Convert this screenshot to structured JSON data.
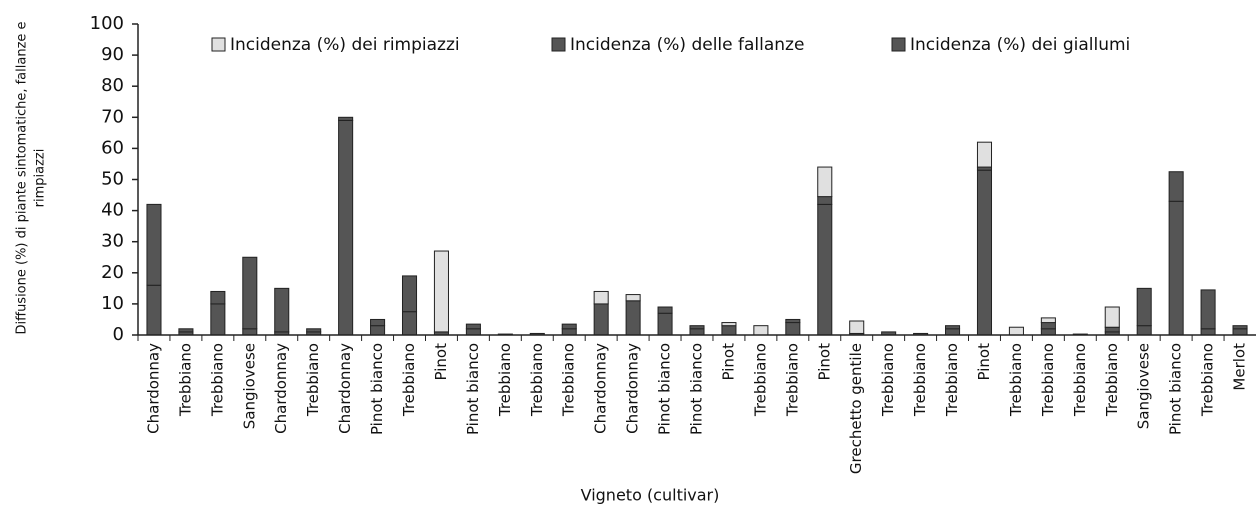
{
  "chart_data": {
    "type": "stacked_bar",
    "ylabel": [
      "Diffusione (%) di piante sintomatiche, fallanze e",
      "rimpiazzi"
    ],
    "xlabel": "Vigneto (cultivar)",
    "categories": [
      "Chardonnay",
      "Trebbiano",
      "Trebbiano",
      "Sangiovese",
      "Chardonnay",
      "Trebbiano",
      "Chardonnay",
      "Pinot bianco",
      "Trebbiano",
      "Pinot",
      "Pinot bianco",
      "Trebbiano",
      "Trebbiano",
      "Trebbiano",
      "Chardonnay",
      "Chardonnay",
      "Pinot bianco",
      "Pinot bianco",
      "Pinot",
      "Trebbiano",
      "Trebbiano",
      "Pinot",
      "Grechetto gentile",
      "Trebbiano",
      "Trebbiano",
      "Trebbiano",
      "Pinot",
      "Trebbiano",
      "Trebbiano",
      "Trebbiano",
      "Trebbiano",
      "Sangiovese",
      "Pinot bianco",
      "Trebbiano",
      "Merlot"
    ],
    "series": [
      {
        "name": "Incidenza (%) dei giallumi",
        "color": "#555555",
        "values": [
          16,
          1,
          10,
          2,
          1,
          1,
          69,
          3,
          7.5,
          0,
          2,
          0,
          0.5,
          2,
          10,
          11,
          7,
          2,
          3,
          0,
          4,
          42,
          0.5,
          1,
          0.5,
          2,
          53,
          0,
          2,
          0.3,
          1,
          3,
          43,
          2,
          2
        ]
      },
      {
        "name": "Incidenza (%) delle fallanze",
        "color": "#555555",
        "values": [
          26,
          1,
          4,
          23,
          14,
          1,
          1,
          2,
          11.5,
          1,
          1.5,
          0,
          0,
          1.5,
          0,
          0,
          2,
          1,
          0,
          0,
          1,
          2.5,
          0,
          0,
          0,
          1,
          1,
          0,
          2,
          0,
          1.5,
          12,
          9.5,
          12.5,
          1
        ]
      },
      {
        "name": "Incidenza (%) dei rimpiazzi",
        "color": "#e0e0e0",
        "values": [
          0,
          0,
          0,
          0,
          0,
          0,
          0,
          0,
          0,
          26,
          0,
          0.3,
          0,
          0,
          4,
          2,
          0,
          0,
          1,
          3,
          0,
          9.5,
          4,
          0,
          0,
          0,
          8,
          2.5,
          1.5,
          0,
          6.5,
          0,
          0,
          0,
          0
        ]
      }
    ],
    "ylim": [
      0,
      100
    ],
    "yticks": [
      0,
      10,
      20,
      30,
      40,
      50,
      60,
      70,
      80,
      90,
      100
    ],
    "legend": "top"
  }
}
